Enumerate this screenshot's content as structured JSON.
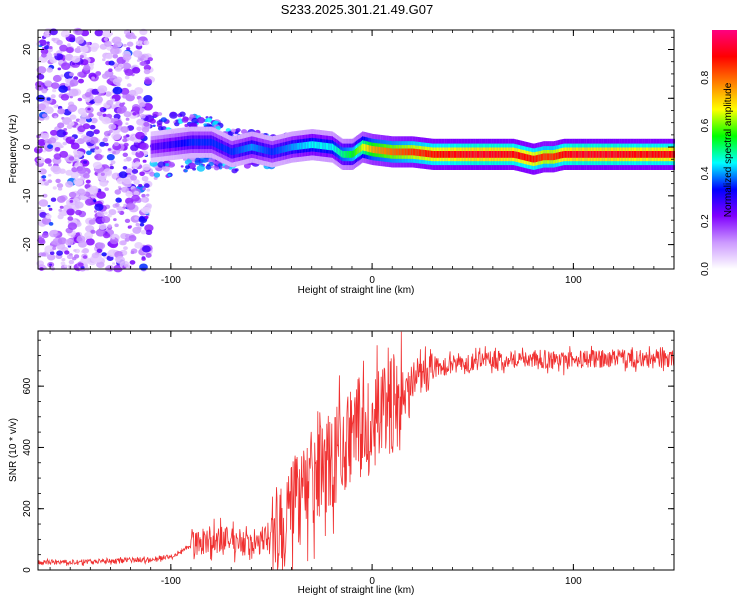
{
  "title": "S233.2025.301.21.49.G07",
  "chart_data": [
    {
      "type": "heatmap",
      "title": "S233.2025.301.21.49.G07",
      "xlabel": "Height of straight line (km)",
      "ylabel": "Frequency (Hz)",
      "xlim": [
        -166,
        150
      ],
      "ylim": [
        -25,
        24
      ],
      "xticks": [
        -100,
        0,
        100
      ],
      "yticks": [
        -20,
        -10,
        0,
        10,
        20
      ],
      "colorbar": {
        "label": "Normalized spectral amplitude",
        "range": [
          0,
          1
        ],
        "ticks": [
          "0.0",
          "0.2",
          "0.4",
          "0.6",
          "0.8"
        ],
        "colors": [
          "#ffffff",
          "#cc99ff",
          "#8000ff",
          "#0000ff",
          "#00ffff",
          "#00ff00",
          "#ffff00",
          "#ff8000",
          "#ff0000",
          "#ff0080"
        ]
      },
      "ridge": {
        "x": [
          -160,
          -110,
          -100,
          -90,
          -80,
          -70,
          -60,
          -50,
          -40,
          -30,
          -20,
          -15,
          -10,
          -5,
          0,
          10,
          20,
          30,
          40,
          50,
          60,
          70,
          80,
          85,
          90,
          95,
          100,
          110,
          120,
          130,
          140,
          150
        ],
        "freq": [
          0,
          0,
          0.5,
          1,
          1,
          -1,
          0,
          -1,
          0,
          0.5,
          0,
          -1.5,
          -1.5,
          0,
          -0.5,
          -1,
          -1,
          -1.5,
          -1.5,
          -1.5,
          -1.5,
          -1.5,
          -2.5,
          -2,
          -2,
          -1.5,
          -1.5,
          -1.5,
          -1.5,
          -1.5,
          -1.5,
          -1.5
        ],
        "amplitude": [
          0.15,
          0.25,
          0.3,
          0.35,
          0.35,
          0.35,
          0.4,
          0.35,
          0.4,
          0.45,
          0.45,
          0.5,
          0.55,
          0.65,
          0.75,
          0.8,
          0.85,
          0.88,
          0.9,
          0.92,
          0.92,
          0.9,
          0.88,
          0.85,
          0.85,
          0.9,
          0.92,
          0.92,
          0.92,
          0.9,
          0.9,
          0.9
        ]
      }
    },
    {
      "type": "line",
      "xlabel": "Height of straight line (km)",
      "ylabel": "SNR (10 * v/v)",
      "xlim": [
        -166,
        150
      ],
      "ylim": [
        0,
        780
      ],
      "xticks": [
        -100,
        0,
        100
      ],
      "yticks": [
        0,
        200,
        400,
        600
      ],
      "series": [
        {
          "name": "SNR",
          "color": "#f03030",
          "x": [
            -166,
            -150,
            -130,
            -110,
            -100,
            -95,
            -90,
            -85,
            -80,
            -75,
            -70,
            -65,
            -60,
            -55,
            -50,
            -45,
            -40,
            -35,
            -30,
            -25,
            -20,
            -15,
            -10,
            -5,
            0,
            5,
            10,
            15,
            20,
            25,
            30,
            40,
            50,
            60,
            70,
            80,
            90,
            95,
            100,
            110,
            120,
            130,
            140,
            150
          ],
          "y": [
            25,
            25,
            30,
            35,
            45,
            60,
            80,
            95,
            100,
            100,
            95,
            90,
            90,
            95,
            110,
            150,
            190,
            230,
            280,
            320,
            360,
            400,
            430,
            450,
            470,
            500,
            540,
            580,
            610,
            640,
            660,
            670,
            680,
            685,
            690,
            690,
            685,
            680,
            685,
            690,
            690,
            690,
            685,
            690
          ]
        }
      ]
    }
  ]
}
